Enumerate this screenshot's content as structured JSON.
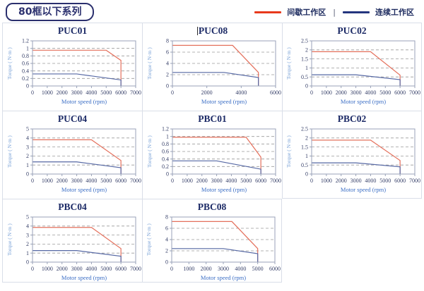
{
  "header": {
    "tag": "80框以下系列"
  },
  "legend": {
    "items": [
      {
        "name": "intermittent-zone",
        "label": "间歇工作区",
        "color": "#e8391c"
      },
      {
        "name": "continuous-zone",
        "label": "连续工作区",
        "color": "#24357e"
      }
    ],
    "divider": "|"
  },
  "colors": {
    "red_curve": "#e4705c",
    "blue_curve": "#5668a4",
    "gridline": "#9a9a9a",
    "axis": "#98a2b8",
    "tick_text": "#374069",
    "xlabel_text": "#3b6ec5",
    "ylabel_text": "#7ba3d8",
    "title_text": "#1c2a66"
  },
  "chart_data": [
    {
      "type": "line",
      "title": "PUC01",
      "title_cursor": false,
      "xlabel": "Motor speed (rpm)",
      "ylabel": "Torque ( N·m )",
      "xlim": [
        0,
        7000
      ],
      "xticks": [
        0,
        1000,
        2000,
        3000,
        4000,
        5000,
        6000,
        7000
      ],
      "ylim": [
        0,
        1.2
      ],
      "yticks": [
        0,
        0.2,
        0.4,
        0.6,
        0.8,
        1,
        1.2
      ],
      "grid": "horizontal-dashed",
      "legend_position": "none",
      "series": [
        {
          "name": "间歇工作区",
          "color": "#e4705c",
          "points": [
            [
              0,
              0.95
            ],
            [
              5000,
              0.95
            ],
            [
              6000,
              0.68
            ],
            [
              6000,
              0
            ]
          ]
        },
        {
          "name": "连续工作区",
          "color": "#5668a4",
          "points": [
            [
              0,
              0.32
            ],
            [
              3000,
              0.32
            ],
            [
              6000,
              0.16
            ],
            [
              6000,
              0
            ]
          ]
        }
      ]
    },
    {
      "type": "line",
      "title": "PUC08",
      "title_cursor": true,
      "xlabel": "Motor speed (rpm)",
      "ylabel": "Torque ( N·m )",
      "xlim": [
        0,
        6000
      ],
      "xticks": [
        0,
        2000,
        4000,
        6000
      ],
      "ylim": [
        0,
        8
      ],
      "yticks": [
        0,
        2,
        4,
        6,
        8
      ],
      "grid": "horizontal-dashed",
      "legend_position": "none",
      "series": [
        {
          "name": "间歇工作区",
          "color": "#e4705c",
          "points": [
            [
              0,
              7.2
            ],
            [
              3500,
              7.2
            ],
            [
              5000,
              2.4
            ],
            [
              5000,
              0
            ]
          ]
        },
        {
          "name": "连续工作区",
          "color": "#5668a4",
          "points": [
            [
              0,
              2.4
            ],
            [
              3000,
              2.4
            ],
            [
              5000,
              1.5
            ],
            [
              5000,
              0
            ]
          ]
        }
      ]
    },
    {
      "type": "line",
      "title": "PUC02",
      "title_cursor": false,
      "xlabel": "Motor speed (rpm)",
      "ylabel": "Torque ( N·m )",
      "xlim": [
        0,
        7000
      ],
      "xticks": [
        0,
        1000,
        2000,
        3000,
        4000,
        5000,
        6000,
        7000
      ],
      "ylim": [
        0,
        2.5
      ],
      "yticks": [
        0,
        0.5,
        1,
        1.5,
        2,
        2.5
      ],
      "grid": "horizontal-dashed",
      "legend_position": "none",
      "series": [
        {
          "name": "间歇工作区",
          "color": "#e4705c",
          "points": [
            [
              0,
              1.9
            ],
            [
              4000,
              1.9
            ],
            [
              6000,
              0.6
            ],
            [
              6000,
              0
            ]
          ]
        },
        {
          "name": "连续工作区",
          "color": "#5668a4",
          "points": [
            [
              0,
              0.62
            ],
            [
              3000,
              0.62
            ],
            [
              6000,
              0.35
            ],
            [
              6000,
              0
            ]
          ]
        }
      ]
    },
    {
      "type": "line",
      "title": "PUC04",
      "title_cursor": false,
      "xlabel": "Motor speed (rpm)",
      "ylabel": "Torque ( N·m )",
      "xlim": [
        0,
        7000
      ],
      "xticks": [
        0,
        1000,
        2000,
        3000,
        4000,
        5000,
        6000,
        7000
      ],
      "ylim": [
        0,
        5
      ],
      "yticks": [
        0,
        1,
        2,
        3,
        4,
        5
      ],
      "grid": "horizontal-dashed",
      "legend_position": "none",
      "series": [
        {
          "name": "间歇工作区",
          "color": "#e4705c",
          "points": [
            [
              0,
              3.8
            ],
            [
              4000,
              3.8
            ],
            [
              6000,
              1.5
            ],
            [
              6000,
              0
            ]
          ]
        },
        {
          "name": "连续工作区",
          "color": "#5668a4",
          "points": [
            [
              0,
              1.35
            ],
            [
              3000,
              1.35
            ],
            [
              6000,
              0.7
            ],
            [
              6000,
              0
            ]
          ]
        }
      ]
    },
    {
      "type": "line",
      "title": "PBC01",
      "title_cursor": false,
      "xlabel": "Motor speed (rpm)",
      "ylabel": "Torque ( N·m )",
      "xlim": [
        0,
        7000
      ],
      "xticks": [
        0,
        1000,
        2000,
        3000,
        4000,
        5000,
        6000,
        7000
      ],
      "ylim": [
        0,
        1.2
      ],
      "yticks": [
        0,
        0.2,
        0.4,
        0.6,
        0.8,
        1,
        1.2
      ],
      "grid": "horizontal-dashed",
      "legend_position": "none",
      "series": [
        {
          "name": "间歇工作区",
          "color": "#e4705c",
          "points": [
            [
              0,
              0.98
            ],
            [
              5000,
              0.98
            ],
            [
              6000,
              0.45
            ],
            [
              6000,
              0
            ]
          ]
        },
        {
          "name": "连续工作区",
          "color": "#5668a4",
          "points": [
            [
              0,
              0.35
            ],
            [
              3000,
              0.35
            ],
            [
              6000,
              0.13
            ],
            [
              6000,
              0
            ]
          ]
        }
      ]
    },
    {
      "type": "line",
      "title": "PBC02",
      "title_cursor": false,
      "xlabel": "Motor speed (rpm)",
      "ylabel": "Torque ( N·m )",
      "xlim": [
        0,
        7000
      ],
      "xticks": [
        0,
        1000,
        2000,
        3000,
        4000,
        5000,
        6000,
        7000
      ],
      "ylim": [
        0,
        2.5
      ],
      "yticks": [
        0,
        0.5,
        1,
        1.5,
        2,
        2.5
      ],
      "grid": "horizontal-dashed",
      "legend_position": "none",
      "series": [
        {
          "name": "间歇工作区",
          "color": "#e4705c",
          "points": [
            [
              0,
              1.88
            ],
            [
              4000,
              1.88
            ],
            [
              6000,
              0.75
            ],
            [
              6000,
              0
            ]
          ]
        },
        {
          "name": "连续工作区",
          "color": "#5668a4",
          "points": [
            [
              0,
              0.62
            ],
            [
              3000,
              0.62
            ],
            [
              6000,
              0.4
            ],
            [
              6000,
              0
            ]
          ]
        }
      ]
    },
    {
      "type": "line",
      "title": "PBC04",
      "title_cursor": false,
      "xlabel": "Motor speed (rpm)",
      "ylabel": "Torque ( N·m )",
      "xlim": [
        0,
        7000
      ],
      "xticks": [
        0,
        1000,
        2000,
        3000,
        4000,
        5000,
        6000,
        7000
      ],
      "ylim": [
        0,
        5
      ],
      "yticks": [
        0,
        1,
        2,
        3,
        4,
        5
      ],
      "grid": "horizontal-dashed",
      "legend_position": "none",
      "series": [
        {
          "name": "间歇工作区",
          "color": "#e4705c",
          "points": [
            [
              0,
              3.85
            ],
            [
              4000,
              3.85
            ],
            [
              6000,
              1.5
            ],
            [
              6000,
              0
            ]
          ]
        },
        {
          "name": "连续工作区",
          "color": "#5668a4",
          "points": [
            [
              0,
              1.28
            ],
            [
              3000,
              1.28
            ],
            [
              6000,
              0.65
            ],
            [
              6000,
              0
            ]
          ]
        }
      ]
    },
    {
      "type": "line",
      "title": "PBC08",
      "title_cursor": false,
      "xlabel": "Motor speed (rpm)",
      "ylabel": "Torque ( N·m )",
      "xlim": [
        0,
        6000
      ],
      "xticks": [
        0,
        1000,
        2000,
        3000,
        4000,
        5000,
        6000
      ],
      "ylim": [
        0,
        8
      ],
      "yticks": [
        0,
        2,
        4,
        6,
        8
      ],
      "grid": "horizontal-dashed",
      "legend_position": "none",
      "series": [
        {
          "name": "间歇工作区",
          "color": "#e4705c",
          "points": [
            [
              0,
              7.2
            ],
            [
              3500,
              7.2
            ],
            [
              5000,
              2.4
            ],
            [
              5000,
              0
            ]
          ]
        },
        {
          "name": "连续工作区",
          "color": "#5668a4",
          "points": [
            [
              0,
              2.4
            ],
            [
              3000,
              2.4
            ],
            [
              5000,
              1.5
            ],
            [
              5000,
              0
            ]
          ]
        }
      ]
    }
  ]
}
